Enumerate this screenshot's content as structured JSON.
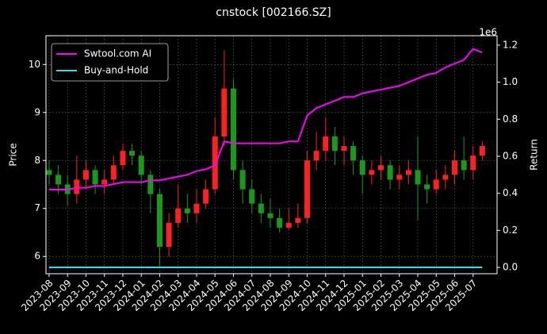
{
  "chart_data": {
    "type": "candlestick",
    "title": "cnstock [002166.SZ]",
    "ylabel": "Price",
    "y2label": "Return",
    "y2_offset": "1e6",
    "x": [
      0,
      0.5,
      1,
      1.5,
      2,
      2.5,
      3,
      3.5,
      4,
      4.5,
      5,
      5.5,
      6,
      6.5,
      7,
      7.5,
      8,
      8.5,
      9,
      9.5,
      10,
      10.5,
      11,
      11.5,
      12,
      12.5,
      13,
      13.5,
      14,
      14.5,
      15,
      15.5,
      16,
      16.5,
      17,
      17.5,
      18,
      18.5,
      19,
      19.5,
      20,
      20.5,
      21,
      21.5,
      22,
      22.5,
      23,
      23.5
    ],
    "open": [
      7.8,
      7.7,
      7.5,
      7.3,
      7.6,
      7.8,
      7.5,
      7.6,
      7.9,
      8.2,
      8.1,
      7.7,
      7.3,
      6.2,
      6.7,
      7.0,
      6.9,
      7.1,
      7.4,
      8.5,
      9.5,
      7.8,
      7.4,
      7.1,
      6.9,
      6.8,
      6.6,
      6.7,
      6.8,
      8.0,
      8.2,
      8.5,
      8.2,
      8.3,
      8.0,
      7.7,
      7.8,
      7.9,
      7.6,
      7.7,
      7.8,
      7.5,
      7.4,
      7.6,
      7.7,
      8.0,
      7.8,
      8.1
    ],
    "high": [
      8.0,
      7.9,
      7.7,
      8.1,
      8.0,
      7.9,
      7.8,
      8.1,
      8.35,
      8.35,
      8.2,
      7.8,
      7.4,
      6.9,
      7.5,
      7.3,
      7.4,
      7.6,
      8.9,
      10.3,
      9.7,
      8.0,
      7.6,
      7.3,
      7.2,
      7.0,
      7.0,
      7.1,
      8.2,
      8.6,
      8.9,
      8.7,
      8.5,
      8.4,
      8.1,
      8.0,
      8.1,
      8.0,
      7.9,
      8.0,
      8.5,
      7.7,
      7.8,
      7.9,
      8.2,
      8.5,
      8.3,
      8.4
    ],
    "low": [
      7.5,
      7.3,
      7.05,
      7.1,
      7.4,
      7.3,
      7.3,
      7.5,
      7.8,
      7.9,
      7.5,
      6.9,
      5.8,
      6.0,
      6.6,
      6.7,
      6.7,
      7.0,
      7.3,
      8.3,
      7.6,
      7.1,
      6.9,
      6.7,
      6.6,
      6.5,
      6.55,
      6.6,
      6.7,
      7.8,
      8.0,
      7.9,
      7.9,
      7.7,
      7.3,
      7.5,
      7.6,
      7.4,
      7.4,
      7.5,
      6.75,
      7.1,
      7.3,
      7.4,
      7.5,
      7.6,
      7.6,
      8.0
    ],
    "close": [
      7.7,
      7.5,
      7.3,
      7.6,
      7.8,
      7.5,
      7.6,
      7.9,
      8.2,
      8.1,
      7.7,
      7.3,
      6.2,
      6.7,
      7.0,
      6.9,
      7.1,
      7.4,
      8.5,
      9.5,
      7.8,
      7.4,
      7.1,
      6.9,
      6.8,
      6.6,
      6.7,
      6.8,
      8.0,
      8.2,
      8.5,
      8.2,
      8.3,
      8.0,
      7.7,
      7.8,
      7.9,
      7.6,
      7.7,
      7.8,
      7.5,
      7.4,
      7.6,
      7.7,
      8.0,
      7.8,
      8.1,
      8.3
    ],
    "up_color": "#ff2020",
    "down_color": "#1a9a1a",
    "series": [
      {
        "name": "Swtool.com AI",
        "color": "#ff00ff",
        "axis": "y2",
        "values": [
          0.42,
          0.42,
          0.42,
          0.43,
          0.43,
          0.44,
          0.44,
          0.45,
          0.46,
          0.46,
          0.46,
          0.47,
          0.47,
          0.48,
          0.49,
          0.5,
          0.52,
          0.53,
          0.55,
          0.68,
          0.67,
          0.67,
          0.67,
          0.67,
          0.67,
          0.67,
          0.68,
          0.68,
          0.82,
          0.86,
          0.88,
          0.9,
          0.92,
          0.92,
          0.94,
          0.95,
          0.96,
          0.97,
          0.98,
          1.0,
          1.02,
          1.04,
          1.05,
          1.08,
          1.1,
          1.12,
          1.18,
          1.16
        ]
      },
      {
        "name": "Buy-and-Hold",
        "color": "#22e5e5",
        "axis": "y2",
        "values": [
          0,
          0,
          0,
          0,
          0,
          0,
          0,
          0,
          0,
          0,
          0,
          0,
          0,
          0,
          0,
          0,
          0,
          0,
          0,
          0,
          0,
          0,
          0,
          0,
          0,
          0,
          0,
          0,
          0,
          0,
          0,
          0,
          0,
          0,
          0,
          0,
          0,
          0,
          0,
          0,
          0,
          0,
          0,
          0,
          0,
          0,
          0,
          0
        ]
      }
    ],
    "xlim": [
      -0.17,
      24.3
    ],
    "xticks": [
      {
        "value": 0,
        "label": "2023-08"
      },
      {
        "value": 1,
        "label": "2023-09"
      },
      {
        "value": 2,
        "label": "2023-10"
      },
      {
        "value": 3,
        "label": "2023-11"
      },
      {
        "value": 4,
        "label": "2023-12"
      },
      {
        "value": 5,
        "label": "2024-01"
      },
      {
        "value": 6,
        "label": "2024-02"
      },
      {
        "value": 7,
        "label": "2024-03"
      },
      {
        "value": 8,
        "label": "2024-04"
      },
      {
        "value": 9,
        "label": "2024-05"
      },
      {
        "value": 10,
        "label": "2024-06"
      },
      {
        "value": 11,
        "label": "2024-07"
      },
      {
        "value": 12,
        "label": "2024-08"
      },
      {
        "value": 13,
        "label": "2024-09"
      },
      {
        "value": 14,
        "label": "2024-10"
      },
      {
        "value": 15,
        "label": "2024-11"
      },
      {
        "value": 16,
        "label": "2024-12"
      },
      {
        "value": 17,
        "label": "2025-01"
      },
      {
        "value": 18,
        "label": "2025-02"
      },
      {
        "value": 19,
        "label": "2025-03"
      },
      {
        "value": 20,
        "label": "2025-04"
      },
      {
        "value": 21,
        "label": "2025-05"
      },
      {
        "value": 22,
        "label": "2025-06"
      },
      {
        "value": 23,
        "label": "2025-07"
      }
    ],
    "ylim": [
      5.64,
      10.6
    ],
    "yticks": [
      6,
      7,
      8,
      9,
      10
    ],
    "y2lim": [
      -0.034,
      1.251
    ],
    "y2ticks": [
      {
        "value": 0,
        "label": "0.0"
      },
      0.2,
      0.4,
      0.6,
      0.8,
      {
        "value": 1,
        "label": "1.0"
      },
      1.2
    ],
    "grid": true,
    "legend": "upper left"
  }
}
